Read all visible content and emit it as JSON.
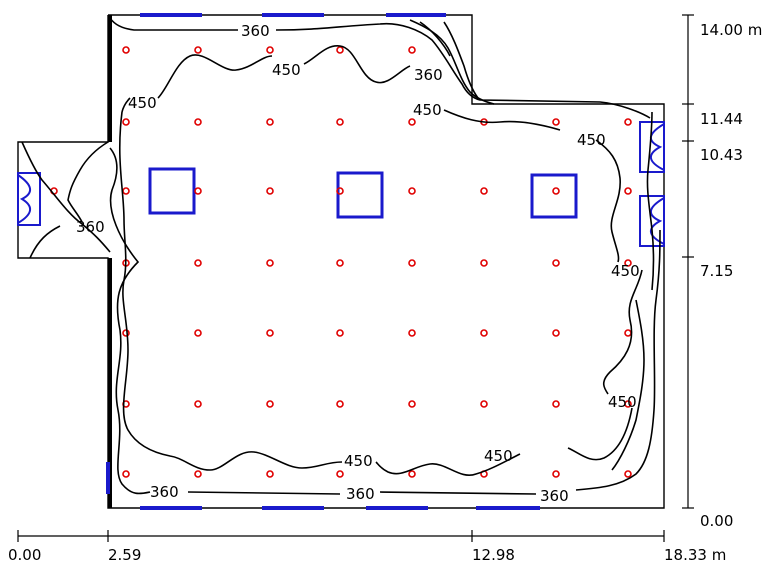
{
  "dimensions": {
    "x_labels": [
      "0.00",
      "2.59",
      "12.98",
      "18.33 m"
    ],
    "y_labels": [
      "14.00 m",
      "11.44",
      "10.43",
      "7.15",
      "0.00"
    ]
  },
  "contour_labels": [
    "360",
    "450",
    "360",
    "450",
    "360",
    "450",
    "450",
    "450",
    "450",
    "450",
    "450",
    "360",
    "360",
    "360"
  ],
  "colors": {
    "walls": "#000000",
    "contours": "#000000",
    "fixtures": "#1a1acc",
    "calc_points": "#e00000"
  },
  "calc_grid": {
    "note_cols": 8,
    "note_rows": 7
  }
}
